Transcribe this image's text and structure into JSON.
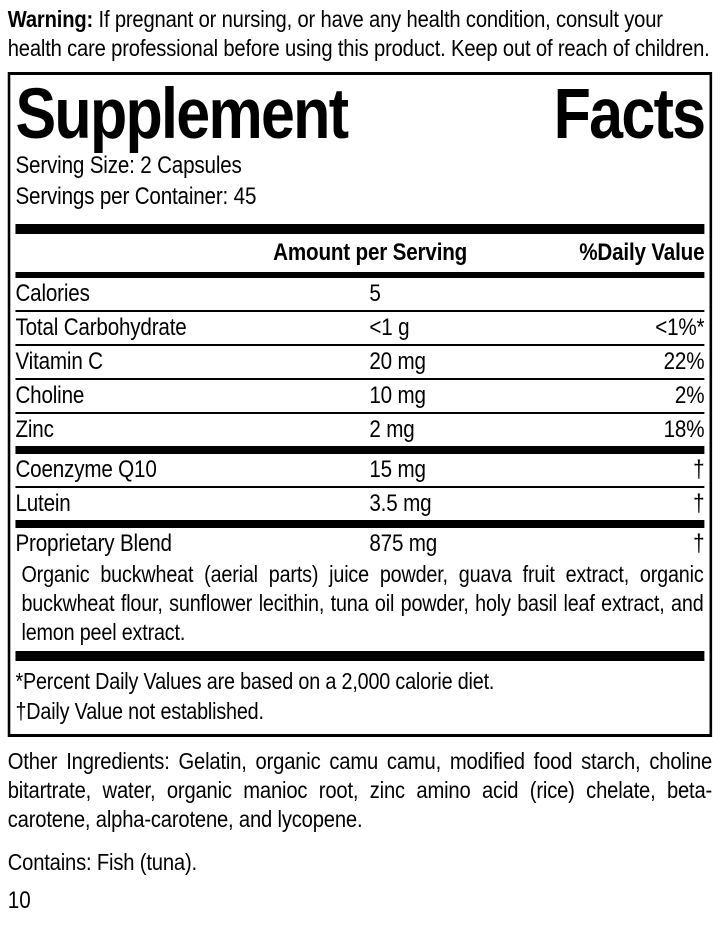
{
  "warning": {
    "label": "Warning:",
    "text": " If pregnant or nursing, or have any health condition, consult your health care professional before using this product. Keep out of reach of children."
  },
  "panel": {
    "title": {
      "word1": "Supplement",
      "word2": "Facts"
    },
    "serving_size": "Serving Size: 2 Capsules",
    "servings_per_container": "Servings per Container: 45",
    "headers": {
      "amount": "Amount per Serving",
      "daily_value": "%Daily Value"
    },
    "rows": [
      {
        "label": "Calories",
        "amount": "5",
        "dv": ""
      },
      {
        "label": "Total Carbohydrate",
        "amount": "<1 g",
        "dv": "<1%*"
      },
      {
        "label": "Vitamin C",
        "amount": "20 mg",
        "dv": "22%"
      },
      {
        "label": "Choline",
        "amount": "10 mg",
        "dv": "2%"
      },
      {
        "label": "Zinc",
        "amount": "2 mg",
        "dv": "18%"
      }
    ],
    "rows_secondary": [
      {
        "label": "Coenzyme Q10",
        "amount": "15 mg",
        "dv": "†"
      },
      {
        "label": "Lutein",
        "amount": "3.5 mg",
        "dv": "†"
      }
    ],
    "blend": {
      "label": "Proprietary Blend",
      "amount": "875 mg",
      "dv": "†",
      "description": "Organic buckwheat (aerial parts) juice powder, guava fruit extract, organic buckwheat flour, sunflower lecithin, tuna oil powder, holy basil leaf extract, and lemon peel extract."
    },
    "footnotes": {
      "daily_values": "*Percent Daily Values are based on a 2,000 calorie diet.",
      "not_established": "†Daily Value not established."
    }
  },
  "other_ingredients": "Other Ingredients: Gelatin, organic camu camu, modified food starch, choline bitartrate, water, organic manioc root, zinc amino acid (rice) chelate, beta-carotene, alpha-carotene, and lycopene.",
  "contains": "Contains: Fish (tuna).",
  "page_number": "10",
  "colors": {
    "text": "#000000",
    "background": "#ffffff",
    "rule": "#000000"
  }
}
